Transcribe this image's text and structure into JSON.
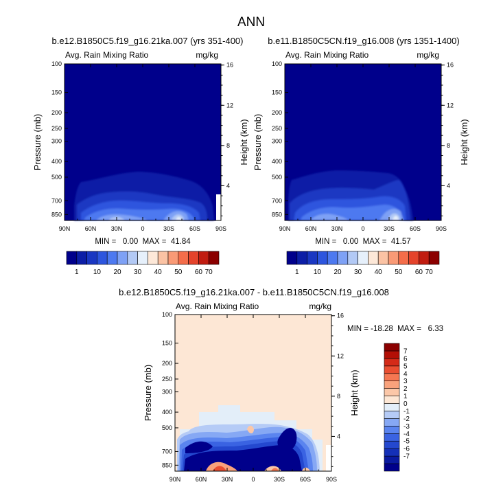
{
  "title": "ANN",
  "left_axis_title": "Pressure (mb)",
  "right_axis_title": "Height (km)",
  "x_ticks": [
    "90N",
    "60N",
    "30N",
    "0",
    "30S",
    "60S",
    "90S"
  ],
  "y_ticks": [
    "100",
    "150",
    "200",
    "250",
    "300",
    "400",
    "500",
    "700",
    "850"
  ],
  "height_ticks": [
    "16",
    "12",
    "8",
    "4"
  ],
  "colors": {
    "abs_palette": [
      "#00008b",
      "#0c1ea6",
      "#1a37c2",
      "#2d55de",
      "#4d79f0",
      "#7ea1f5",
      "#b2c9f5",
      "#e6f0fb",
      "#fde8d8",
      "#fbc3a4",
      "#f99a76",
      "#f46d4a",
      "#e4432b",
      "#c11c10",
      "#8b0000"
    ],
    "diff_palette": [
      "#00008b",
      "#0a1aa0",
      "#1430b8",
      "#2448cf",
      "#3a63e2",
      "#5a84ef",
      "#86a8f4",
      "#b5cbf6",
      "#e3eef9",
      "#fde7d5",
      "#fbc7a8",
      "#f9a27c",
      "#f57752",
      "#ea4e31",
      "#d42a18",
      "#b30f06",
      "#8b0000"
    ]
  },
  "chart_data": [
    {
      "type": "heatmap",
      "title": "b.e12.B1850C5.f19_g16.21ka.007 (yrs 351-400)",
      "subtitle_left": "Avg. Rain Mixing Ratio",
      "subtitle_right": "mg/kg",
      "xlabel": "",
      "ylabel": "Pressure (mb)",
      "ylabel_right": "Height (km)",
      "stats": "MIN =   0.00  MAX =  41.84",
      "min": 0.0,
      "max": 41.84,
      "colorbar_labels": [
        "1",
        "10",
        "20",
        "30",
        "40",
        "50",
        "60",
        "70"
      ]
    },
    {
      "type": "heatmap",
      "title": "b.e11.B1850C5CN.f19_g16.008 (yrs 1351-1400)",
      "subtitle_left": "Avg. Rain Mixing Ratio",
      "subtitle_right": "mg/kg",
      "xlabel": "",
      "ylabel": "Pressure (mb)",
      "ylabel_right": "Height (km)",
      "stats": "MIN =   0.00  MAX =  41.57",
      "min": 0.0,
      "max": 41.57,
      "colorbar_labels": [
        "1",
        "10",
        "20",
        "30",
        "40",
        "50",
        "60",
        "70"
      ]
    },
    {
      "type": "heatmap",
      "title": "b.e12.B1850C5.f19_g16.21ka.007 - b.e11.B1850C5CN.f19_g16.008",
      "subtitle_left": "Avg. Rain Mixing Ratio",
      "subtitle_right": "mg/kg",
      "xlabel": "",
      "ylabel": "Pressure (mb)",
      "ylabel_right": "Height (km)",
      "stats": "MIN = -18.28  MAX =   6.33",
      "min": -18.28,
      "max": 6.33,
      "colorbar_labels": [
        "7",
        "6",
        "5",
        "4",
        "3",
        "2",
        "1",
        "0",
        "-1",
        "-2",
        "-3",
        "-4",
        "-5",
        "-6",
        "-7"
      ]
    }
  ]
}
